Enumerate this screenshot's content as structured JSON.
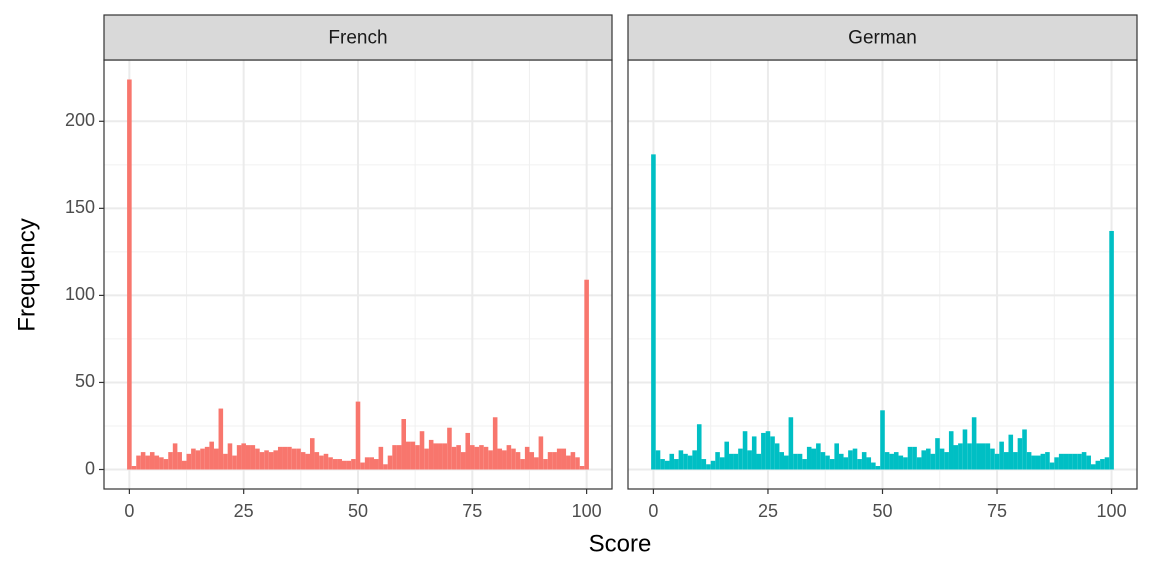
{
  "chart_data": [
    {
      "type": "histogram",
      "title": "French",
      "xlabel": "Score",
      "ylabel": "Frequency",
      "color": "#F8766D",
      "bins": [
        -0.5,
        0.5,
        1.5,
        2.5,
        3.5,
        4.5,
        5.5,
        6.5,
        7.5,
        8.5,
        9.5,
        10.5,
        11.5,
        12.5,
        13.5,
        14.5,
        15.5,
        16.5,
        17.5,
        18.5,
        19.5,
        20.5,
        21.5,
        22.5,
        23.5,
        24.5,
        25.5,
        26.5,
        27.5,
        28.5,
        29.5,
        30.5,
        31.5,
        32.5,
        33.5,
        34.5,
        35.5,
        36.5,
        37.5,
        38.5,
        39.5,
        40.5,
        41.5,
        42.5,
        43.5,
        44.5,
        45.5,
        46.5,
        47.5,
        48.5,
        49.5,
        50.5,
        51.5,
        52.5,
        53.5,
        54.5,
        55.5,
        56.5,
        57.5,
        58.5,
        59.5,
        60.5,
        61.5,
        62.5,
        63.5,
        64.5,
        65.5,
        66.5,
        67.5,
        68.5,
        69.5,
        70.5,
        71.5,
        72.5,
        73.5,
        74.5,
        75.5,
        76.5,
        77.5,
        78.5,
        79.5,
        80.5,
        81.5,
        82.5,
        83.5,
        84.5,
        85.5,
        86.5,
        87.5,
        88.5,
        89.5,
        90.5,
        91.5,
        92.5,
        93.5,
        94.5,
        95.5,
        96.5,
        97.5,
        98.5,
        99.5,
        100.5
      ],
      "values": [
        224,
        2,
        8,
        10,
        8,
        10,
        8,
        7,
        6,
        10,
        15,
        10,
        5,
        9,
        12,
        11,
        12,
        13,
        16,
        12,
        35,
        9,
        15,
        8,
        14,
        15,
        14,
        14,
        12,
        10,
        11,
        10,
        11,
        13,
        13,
        13,
        12,
        12,
        10,
        9,
        18,
        10,
        8,
        9,
        7,
        6,
        6,
        5,
        5,
        6,
        39,
        4,
        7,
        7,
        6,
        13,
        3,
        8,
        14,
        14,
        29,
        16,
        16,
        14,
        22,
        12,
        17,
        15,
        15,
        15,
        24,
        13,
        14,
        10,
        21,
        14,
        13,
        14,
        13,
        11,
        30,
        12,
        11,
        14,
        12,
        10,
        6,
        13,
        10,
        7,
        19,
        6,
        10,
        10,
        12,
        12,
        8,
        10,
        7,
        2,
        109
      ],
      "xlim": [
        -5.55,
        105.55
      ],
      "ylim": [
        -11.2,
        235.2
      ],
      "xticks": [
        0,
        25,
        50,
        75,
        100
      ],
      "yticks": [
        0,
        50,
        100,
        150,
        200
      ],
      "grid": true
    },
    {
      "type": "histogram",
      "title": "German",
      "color": "#00BFC4",
      "bins": [
        -0.5,
        0.5,
        1.5,
        2.5,
        3.5,
        4.5,
        5.5,
        6.5,
        7.5,
        8.5,
        9.5,
        10.5,
        11.5,
        12.5,
        13.5,
        14.5,
        15.5,
        16.5,
        17.5,
        18.5,
        19.5,
        20.5,
        21.5,
        22.5,
        23.5,
        24.5,
        25.5,
        26.5,
        27.5,
        28.5,
        29.5,
        30.5,
        31.5,
        32.5,
        33.5,
        34.5,
        35.5,
        36.5,
        37.5,
        38.5,
        39.5,
        40.5,
        41.5,
        42.5,
        43.5,
        44.5,
        45.5,
        46.5,
        47.5,
        48.5,
        49.5,
        50.5,
        51.5,
        52.5,
        53.5,
        54.5,
        55.5,
        56.5,
        57.5,
        58.5,
        59.5,
        60.5,
        61.5,
        62.5,
        63.5,
        64.5,
        65.5,
        66.5,
        67.5,
        68.5,
        69.5,
        70.5,
        71.5,
        72.5,
        73.5,
        74.5,
        75.5,
        76.5,
        77.5,
        78.5,
        79.5,
        80.5,
        81.5,
        82.5,
        83.5,
        84.5,
        85.5,
        86.5,
        87.5,
        88.5,
        89.5,
        90.5,
        91.5,
        92.5,
        93.5,
        94.5,
        95.5,
        96.5,
        97.5,
        98.5,
        99.5,
        100.5
      ],
      "values": [
        181,
        11,
        6,
        5,
        9,
        6,
        11,
        9,
        8,
        11,
        26,
        6,
        3,
        5,
        10,
        7,
        16,
        9,
        9,
        12,
        22,
        11,
        19,
        9,
        21,
        22,
        19,
        15,
        10,
        8,
        30,
        9,
        9,
        6,
        13,
        12,
        15,
        10,
        8,
        6,
        15,
        9,
        7,
        11,
        12,
        6,
        10,
        7,
        4,
        2,
        34,
        10,
        9,
        10,
        8,
        7,
        13,
        13,
        7,
        11,
        12,
        9,
        18,
        12,
        10,
        22,
        14,
        15,
        23,
        15,
        30,
        15,
        15,
        15,
        12,
        9,
        16,
        10,
        20,
        10,
        18,
        23,
        10,
        8,
        8,
        9,
        10,
        4,
        7,
        9,
        9,
        9,
        9,
        9,
        10,
        8,
        3,
        5,
        6,
        7,
        137
      ],
      "xlim": [
        -5.55,
        105.55
      ],
      "ylim": [
        -11.2,
        235.2
      ],
      "xticks": [
        0,
        25,
        50,
        75,
        100
      ],
      "yticks": [
        0,
        50,
        100,
        150,
        200
      ],
      "grid": true
    }
  ]
}
